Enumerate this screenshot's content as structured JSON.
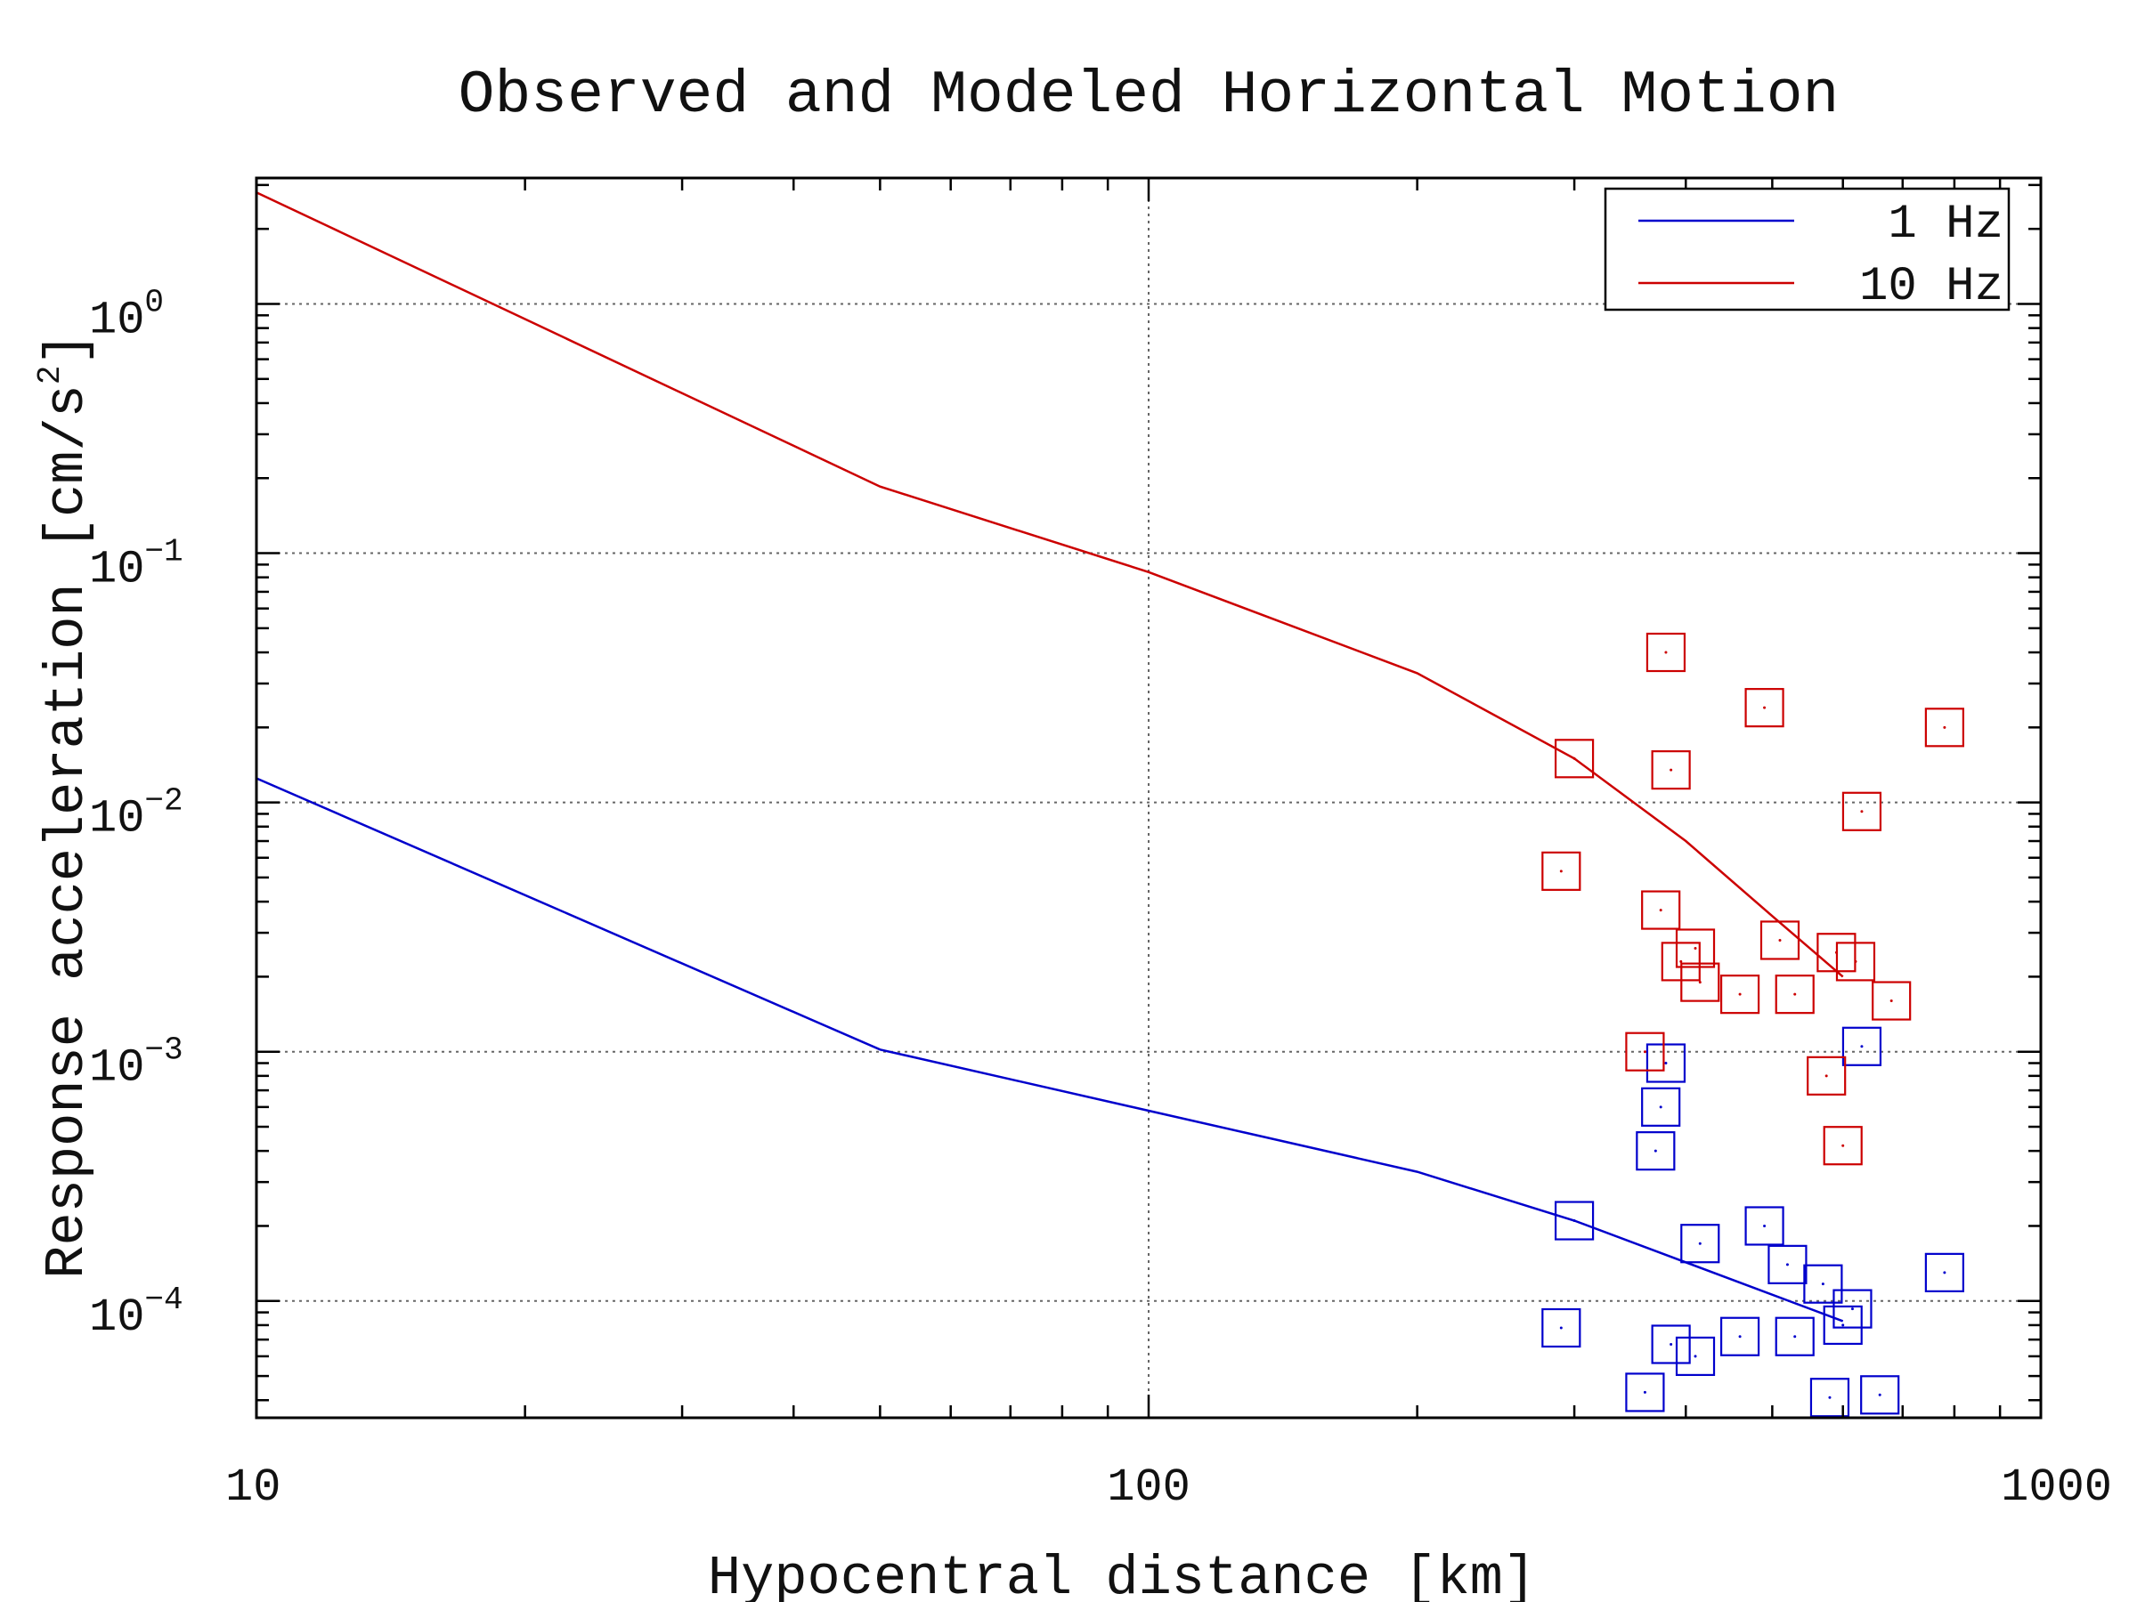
{
  "chart_data": {
    "type": "line",
    "title": "Observed and Modeled Horizontal Motion",
    "xlabel": "Hypocentral distance [km]",
    "ylabel": "Response acceleration [cm/s",
    "ylabel_sup": "2",
    "ylabel_close": "]",
    "xscale": "log",
    "yscale": "log",
    "xlim": [
      10,
      1000
    ],
    "ylim": [
      3.4e-05,
      3.2
    ],
    "grid": true,
    "legend_position": "top-right",
    "x_tick_labels": [
      {
        "value": 10,
        "label": "10"
      },
      {
        "value": 100,
        "label": "100"
      },
      {
        "value": 1000,
        "label": "1000"
      }
    ],
    "y_tick_labels": [
      {
        "value": 1,
        "base": "10",
        "exp": "0"
      },
      {
        "value": 0.1,
        "base": "10",
        "exp": "−1"
      },
      {
        "value": 0.01,
        "base": "10",
        "exp": "−2"
      },
      {
        "value": 0.001,
        "base": "10",
        "exp": "−3"
      },
      {
        "value": 0.0001,
        "base": "10",
        "exp": "−4"
      }
    ],
    "series": [
      {
        "name": "1 Hz",
        "color": "#0000cc",
        "line": [
          [
            10,
            0.0125
          ],
          [
            50,
            0.00102
          ],
          [
            100,
            0.00058
          ],
          [
            200,
            0.00033
          ],
          [
            300,
            0.00021
          ],
          [
            600,
            8.3e-05
          ]
        ],
        "points": [
          [
            290,
            7.8e-05
          ],
          [
            300,
            0.00021
          ],
          [
            360,
            4.3e-05
          ],
          [
            370,
            0.0004
          ],
          [
            375,
            0.0006
          ],
          [
            380,
            0.0009
          ],
          [
            385,
            6.7e-05
          ],
          [
            410,
            6e-05
          ],
          [
            415,
            0.00017
          ],
          [
            460,
            7.2e-05
          ],
          [
            490,
            0.0002
          ],
          [
            520,
            0.00014
          ],
          [
            530,
            7.2e-05
          ],
          [
            570,
            0.000117
          ],
          [
            580,
            4.1e-05
          ],
          [
            600,
            8e-05
          ],
          [
            615,
            9.3e-05
          ],
          [
            630,
            0.00105
          ],
          [
            660,
            4.2e-05
          ],
          [
            780,
            0.00013
          ]
        ]
      },
      {
        "name": "10 Hz",
        "color": "#cc0000",
        "line": [
          [
            10,
            2.8
          ],
          [
            50,
            0.185
          ],
          [
            100,
            0.084
          ],
          [
            200,
            0.033
          ],
          [
            300,
            0.015
          ],
          [
            400,
            0.007
          ],
          [
            500,
            0.0035
          ],
          [
            600,
            0.002
          ]
        ],
        "points": [
          [
            290,
            0.0053
          ],
          [
            300,
            0.015
          ],
          [
            360,
            0.001
          ],
          [
            375,
            0.0037
          ],
          [
            380,
            0.04
          ],
          [
            385,
            0.0135
          ],
          [
            395,
            0.0023
          ],
          [
            410,
            0.0026
          ],
          [
            415,
            0.0019
          ],
          [
            460,
            0.0017
          ],
          [
            490,
            0.024
          ],
          [
            510,
            0.0028
          ],
          [
            530,
            0.0017
          ],
          [
            575,
            0.0008
          ],
          [
            590,
            0.0025
          ],
          [
            600,
            0.00042
          ],
          [
            620,
            0.0023
          ],
          [
            630,
            0.0092
          ],
          [
            680,
            0.0016
          ],
          [
            780,
            0.02
          ]
        ]
      }
    ]
  }
}
